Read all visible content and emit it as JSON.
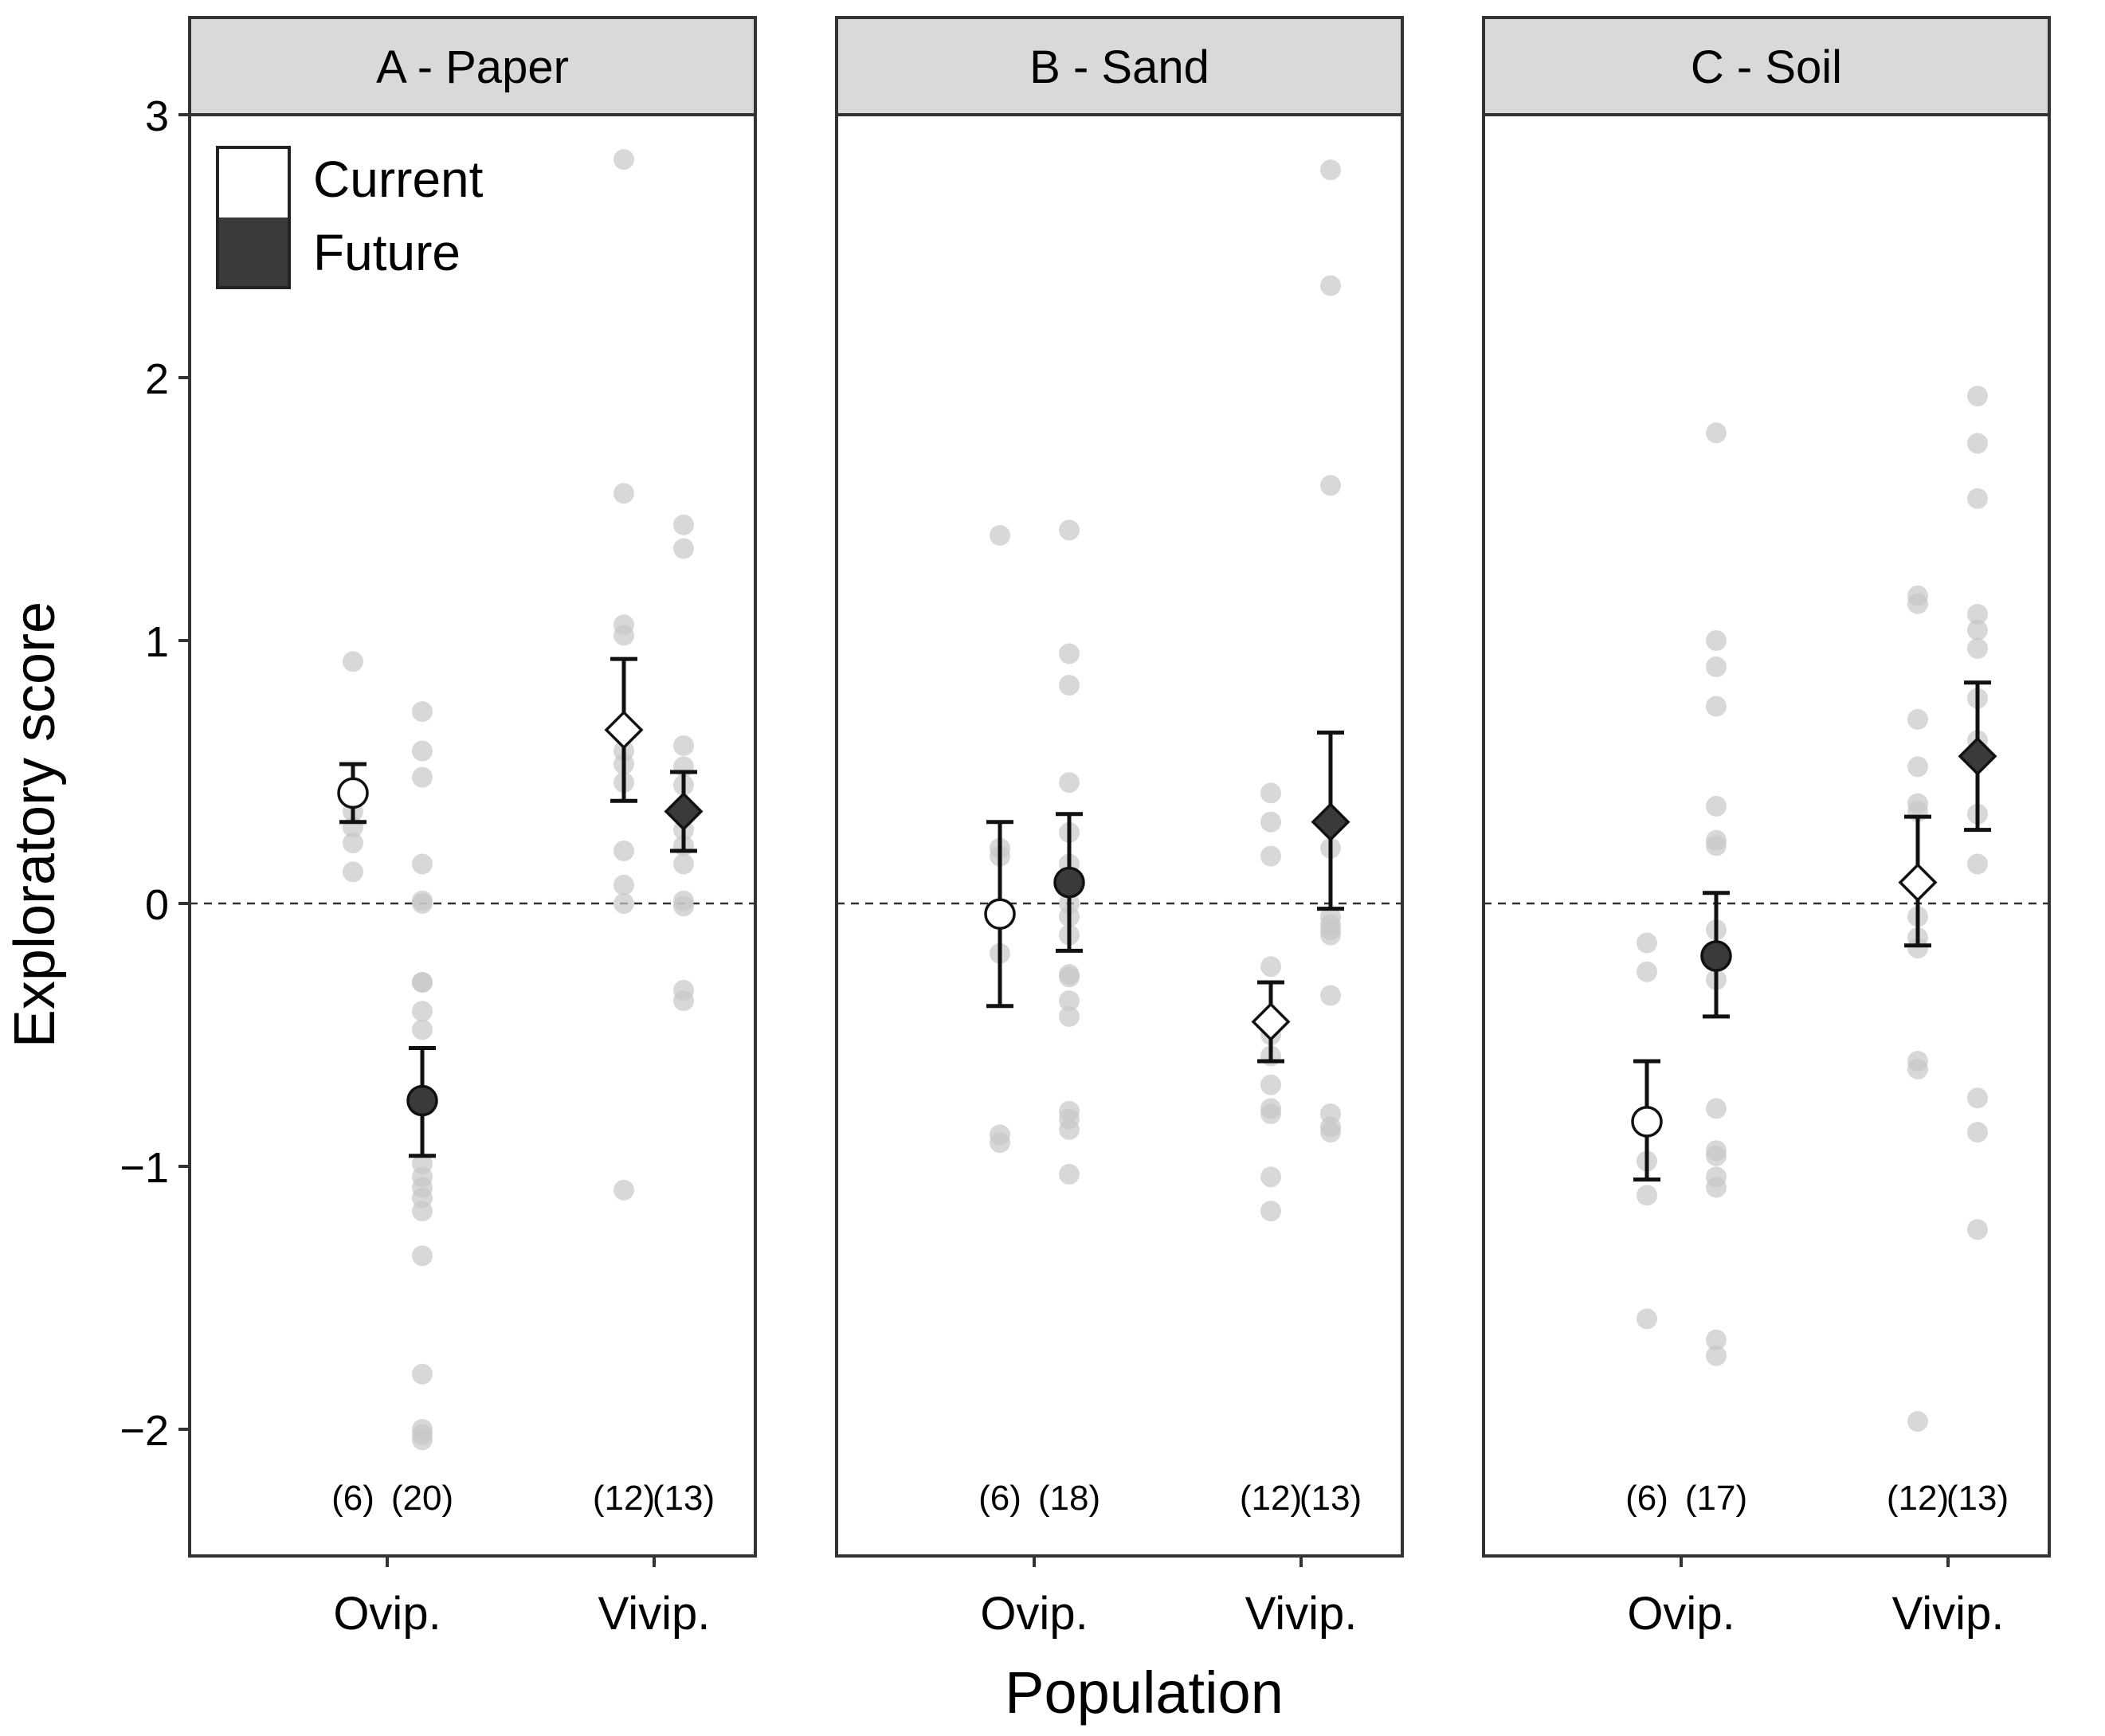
{
  "chart_data": {
    "type": "scatter",
    "ylabel": "Exploratory score",
    "xlabel": "Population",
    "ylim": [
      -2.5,
      3
    ],
    "yticks": [
      -2,
      -1,
      0,
      1,
      2,
      3
    ],
    "ytick_labels": [
      "−2",
      "−1",
      "0",
      "1",
      "2",
      "3"
    ],
    "reference_line": 0,
    "categories": [
      "Ovip.",
      "Vivip."
    ],
    "legend": {
      "placement": "top-left of panel A",
      "entries": [
        {
          "label": "Current",
          "fill": "#ffffff"
        },
        {
          "label": "Future",
          "fill": "#3a3a3a"
        }
      ]
    },
    "colors": {
      "current": "#ffffff",
      "future": "#3a3a3a",
      "raw_points": "#c8c8c8",
      "strip": "#d9d9d9"
    },
    "panels": [
      {
        "title": "A - Paper",
        "groups": [
          {
            "population": "Ovip.",
            "treatment": "Current",
            "shape": "circle",
            "n_label": "(6)",
            "mean": 0.42,
            "lower": 0.31,
            "upper": 0.53,
            "points": [
              0.92,
              0.42,
              0.35,
              0.29,
              0.23,
              0.12
            ]
          },
          {
            "population": "Ovip.",
            "treatment": "Future",
            "shape": "circle",
            "n_label": "(20)",
            "mean": -0.75,
            "lower": -0.96,
            "upper": -0.55,
            "points": [
              0.73,
              0.58,
              0.48,
              0.15,
              0.01,
              -0.3,
              -0.41,
              -0.48,
              -0.99,
              -1.04,
              -1.08,
              -1.12,
              -1.17,
              -1.34,
              -1.79,
              -2.0,
              -2.02,
              -2.04,
              0.0,
              -0.3
            ]
          },
          {
            "population": "Vivip.",
            "treatment": "Current",
            "shape": "diamond",
            "n_label": "(12)",
            "mean": 0.66,
            "lower": 0.39,
            "upper": 0.93,
            "points": [
              2.83,
              1.56,
              1.06,
              1.02,
              0.66,
              0.58,
              0.53,
              0.46,
              0.2,
              0.07,
              0.0,
              -1.09
            ]
          },
          {
            "population": "Vivip.",
            "treatment": "Future",
            "shape": "diamond",
            "n_label": "(13)",
            "mean": 0.35,
            "lower": 0.2,
            "upper": 0.5,
            "points": [
              1.44,
              1.35,
              0.6,
              0.52,
              0.45,
              0.35,
              0.28,
              0.22,
              0.15,
              0.01,
              -0.01,
              -0.33,
              -0.37
            ]
          }
        ]
      },
      {
        "title": "B - Sand",
        "groups": [
          {
            "population": "Ovip.",
            "treatment": "Current",
            "shape": "circle",
            "n_label": "(6)",
            "mean": -0.04,
            "lower": -0.39,
            "upper": 0.31,
            "points": [
              1.4,
              0.21,
              0.18,
              -0.19,
              -0.88,
              -0.91
            ]
          },
          {
            "population": "Ovip.",
            "treatment": "Future",
            "shape": "circle",
            "n_label": "(18)",
            "mean": 0.08,
            "lower": -0.18,
            "upper": 0.34,
            "points": [
              1.42,
              0.95,
              0.83,
              0.46,
              0.15,
              0.1,
              0.0,
              -0.05,
              -0.12,
              -0.27,
              -0.28,
              -0.37,
              -0.43,
              -0.79,
              -0.82,
              -0.86,
              -1.03,
              0.27
            ]
          },
          {
            "population": "Vivip.",
            "treatment": "Current",
            "shape": "diamond",
            "n_label": "(12)",
            "mean": -0.45,
            "lower": -0.6,
            "upper": -0.3,
            "points": [
              0.42,
              0.31,
              0.18,
              -0.24,
              -0.5,
              -0.58,
              -0.69,
              -0.78,
              -0.8,
              -1.04,
              -1.17,
              -0.45
            ]
          },
          {
            "population": "Vivip.",
            "treatment": "Future",
            "shape": "diamond",
            "n_label": "(13)",
            "mean": 0.31,
            "lower": -0.02,
            "upper": 0.65,
            "points": [
              2.79,
              2.35,
              1.59,
              0.21,
              -0.05,
              -0.08,
              -0.1,
              -0.12,
              -0.35,
              -0.8,
              -0.85,
              -0.87,
              0.31
            ]
          }
        ]
      },
      {
        "title": "C - Soil",
        "groups": [
          {
            "population": "Ovip.",
            "treatment": "Current",
            "shape": "circle",
            "n_label": "(6)",
            "mean": -0.83,
            "lower": -1.05,
            "upper": -0.6,
            "points": [
              -0.15,
              -0.26,
              -0.98,
              -1.11,
              -1.58,
              -0.83
            ]
          },
          {
            "population": "Ovip.",
            "treatment": "Future",
            "shape": "circle",
            "n_label": "(17)",
            "mean": -0.2,
            "lower": -0.43,
            "upper": 0.04,
            "points": [
              1.79,
              1.0,
              0.9,
              0.75,
              0.37,
              0.24,
              0.22,
              -0.1,
              -0.29,
              -0.78,
              -0.94,
              -0.96,
              -1.04,
              -1.08,
              -1.66,
              -1.72,
              -0.2
            ]
          },
          {
            "population": "Vivip.",
            "treatment": "Current",
            "shape": "diamond",
            "n_label": "(12)",
            "mean": 0.08,
            "lower": -0.16,
            "upper": 0.33,
            "points": [
              1.17,
              1.14,
              0.7,
              0.52,
              0.38,
              0.35,
              -0.05,
              -0.13,
              -0.17,
              -0.6,
              -0.63,
              -1.97
            ]
          },
          {
            "population": "Vivip.",
            "treatment": "Future",
            "shape": "diamond",
            "n_label": "(13)",
            "mean": 0.56,
            "lower": 0.28,
            "upper": 0.84,
            "points": [
              1.93,
              1.75,
              1.54,
              1.1,
              1.04,
              0.97,
              0.78,
              0.62,
              0.34,
              0.15,
              -0.74,
              -0.87,
              -1.24
            ]
          }
        ]
      }
    ]
  }
}
